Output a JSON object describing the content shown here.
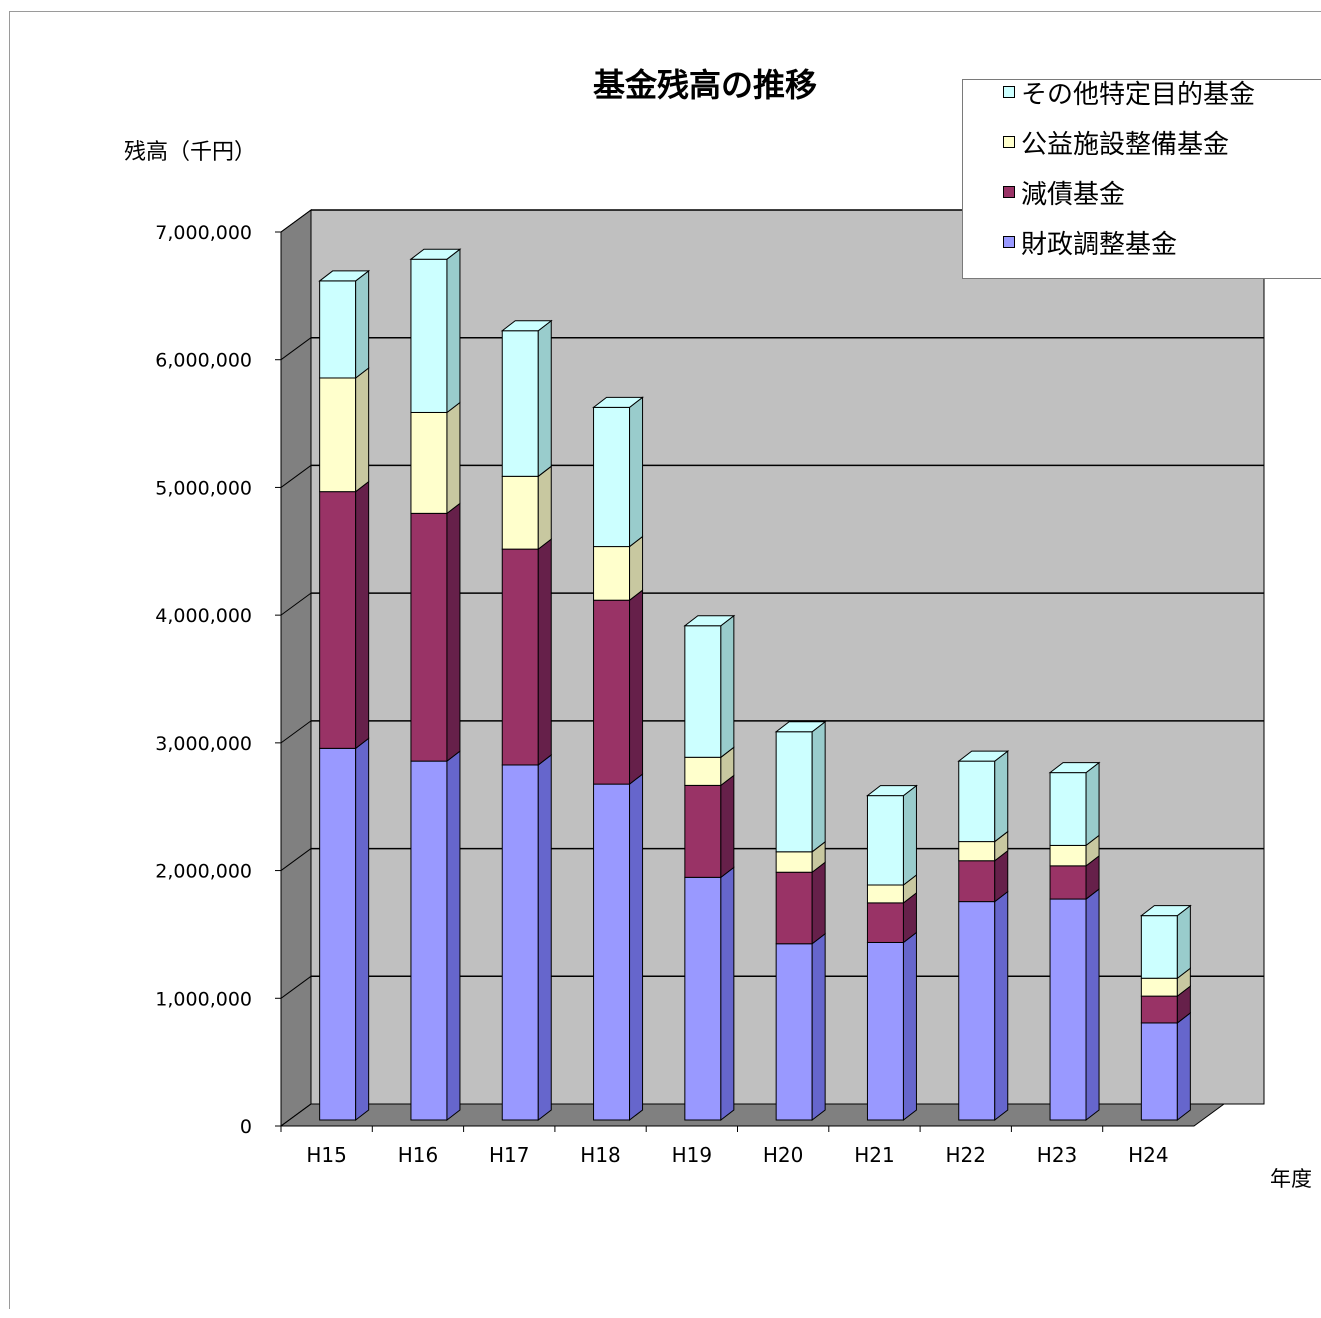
{
  "chart_data": {
    "type": "bar",
    "stacked": true,
    "title": "基金残高の推移",
    "ylabel": "残高（千円）",
    "xlabel": "年度",
    "categories": [
      "H15",
      "H16",
      "H17",
      "H18",
      "H19",
      "H20",
      "H21",
      "H22",
      "H23",
      "H24"
    ],
    "ylim": [
      0,
      7000000
    ],
    "yticks": [
      0,
      1000000,
      2000000,
      3000000,
      4000000,
      5000000,
      6000000,
      7000000
    ],
    "ytick_labels": [
      "0",
      "1,000,000",
      "2,000,000",
      "3,000,000",
      "4,000,000",
      "5,000,000",
      "6,000,000",
      "7,000,000"
    ],
    "grid": true,
    "legend_position": "top-right",
    "series": [
      {
        "name": "財政調整基金",
        "color": "#9999ff",
        "side_color": "#6666cc",
        "values": [
          2910000,
          2810000,
          2780000,
          2630000,
          1900000,
          1380000,
          1390000,
          1710000,
          1730000,
          760000
        ]
      },
      {
        "name": "減債基金",
        "color": "#993366",
        "side_color": "#66204a",
        "values": [
          2010000,
          1940000,
          1690000,
          1440000,
          720000,
          560000,
          310000,
          320000,
          260000,
          210000
        ]
      },
      {
        "name": "公益施設整備基金",
        "color": "#ffffcc",
        "side_color": "#c8c8a0",
        "values": [
          890000,
          790000,
          570000,
          420000,
          220000,
          160000,
          140000,
          150000,
          160000,
          140000
        ]
      },
      {
        "name": "その他特定目的基金",
        "color": "#ccffff",
        "side_color": "#99cccc",
        "values": [
          760000,
          1200000,
          1140000,
          1090000,
          1030000,
          940000,
          700000,
          630000,
          570000,
          490000
        ]
      }
    ]
  }
}
